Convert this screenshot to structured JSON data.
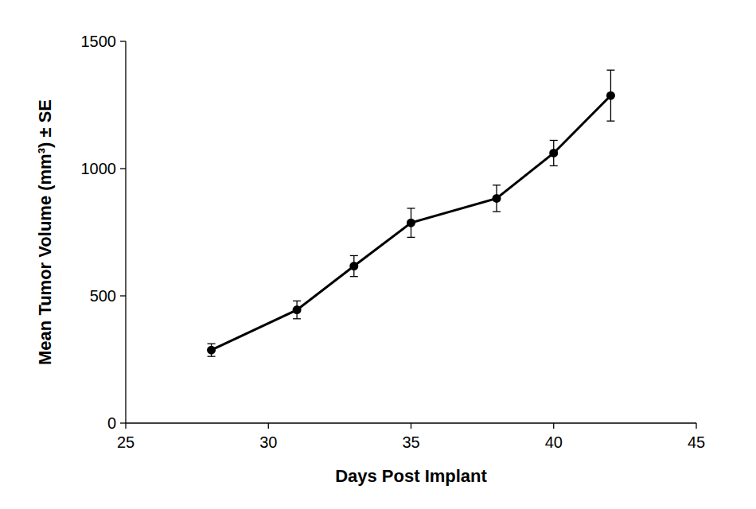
{
  "chart_data": {
    "type": "line",
    "x_label": "Days Post Implant",
    "y_label": "Mean Tumor Volume (mm³) ± SE",
    "x": [
      28,
      31,
      33,
      35,
      38,
      40,
      42
    ],
    "values": [
      287,
      445,
      617,
      787,
      883,
      1061,
      1287
    ],
    "errors": [
      25,
      35,
      41,
      57,
      52,
      50,
      100
    ],
    "color": "#000000",
    "marker": "circle",
    "line_style": "solid",
    "xlim": [
      25,
      45
    ],
    "xticks": [
      25,
      30,
      35,
      40,
      45
    ],
    "ylim": [
      0,
      1500
    ],
    "yticks": [
      0,
      500,
      1000,
      1500
    ],
    "grid": false
  }
}
